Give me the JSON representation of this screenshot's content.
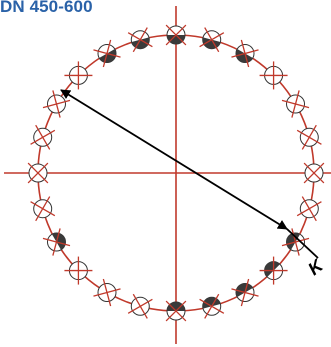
{
  "title": "DN 450-600",
  "diameter_label": "K",
  "bolt_count": 24,
  "bolt_holes": [
    {
      "angle_deg": 255,
      "fill": "none"
    },
    {
      "angle_deg": 240,
      "fill": "none"
    },
    {
      "angle_deg": 225,
      "fill": "none"
    },
    {
      "angle_deg": 210,
      "fill": "half"
    },
    {
      "angle_deg": 195,
      "fill": "none"
    },
    {
      "angle_deg": 180,
      "fill": "none"
    },
    {
      "angle_deg": 165,
      "fill": "none"
    },
    {
      "angle_deg": 150,
      "fill": "none"
    },
    {
      "angle_deg": 135,
      "fill": "none"
    },
    {
      "angle_deg": 120,
      "fill": "half"
    },
    {
      "angle_deg": 105,
      "fill": "half"
    },
    {
      "angle_deg": 90,
      "fill": "half"
    },
    {
      "angle_deg": 75,
      "fill": "half"
    },
    {
      "angle_deg": 60,
      "fill": "half"
    },
    {
      "angle_deg": 45,
      "fill": "none"
    },
    {
      "angle_deg": 30,
      "fill": "none"
    },
    {
      "angle_deg": 15,
      "fill": "none"
    },
    {
      "angle_deg": 0,
      "fill": "none"
    },
    {
      "angle_deg": -15,
      "fill": "none"
    },
    {
      "angle_deg": -30,
      "fill": "half"
    },
    {
      "angle_deg": -45,
      "fill": "half"
    },
    {
      "angle_deg": -60,
      "fill": "half"
    },
    {
      "angle_deg": -75,
      "fill": "half"
    },
    {
      "angle_deg": -90,
      "fill": "half"
    }
  ],
  "colors": {
    "title": "#2a62a8",
    "circle": "#c0392b",
    "centerline": "#c0392b",
    "hole_fill": "#3a3a3a",
    "arrow": "#000000"
  }
}
